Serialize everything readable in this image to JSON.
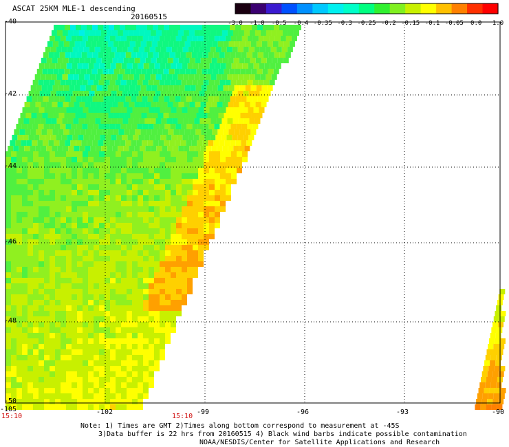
{
  "header": {
    "title": "ASCAT 25KM MLE-1 descending",
    "date": "20160515"
  },
  "colorbar": {
    "colors": [
      "#1a0010",
      "#3a0070",
      "#3a1ad0",
      "#0050ff",
      "#0090ff",
      "#00c8ff",
      "#00f0f0",
      "#00ffc8",
      "#00ff80",
      "#30f030",
      "#80f020",
      "#c8f000",
      "#ffff00",
      "#ffc000",
      "#ff8000",
      "#ff3000",
      "#ff0000"
    ],
    "tick_labels": [
      "-3.0",
      "-1.0",
      "-0.5",
      "-0.4",
      "-0.35",
      "-0.3",
      "-0.25",
      "-0.2",
      "-0.15",
      "-0.1",
      "-0.05",
      "0.0",
      "1.0"
    ]
  },
  "map": {
    "lat_labels": [
      "-40",
      "-42",
      "-44",
      "-46",
      "-48",
      "-50"
    ],
    "lon_labels": [
      "-105",
      "-102",
      "-99",
      "-96",
      "-93",
      "-90"
    ],
    "time_labels": [
      "15:10",
      "15:10"
    ]
  },
  "notes": {
    "line1": "Note: 1) Times are GMT 2)Times along bottom correspond to measurement at -45S",
    "line2": "3)Data buffer is 22 hrs from 20160515 4) Black wind barbs indicate possible contamination",
    "line3": "NOAA/NESDIS/Center for Satellite Applications and Research"
  }
}
